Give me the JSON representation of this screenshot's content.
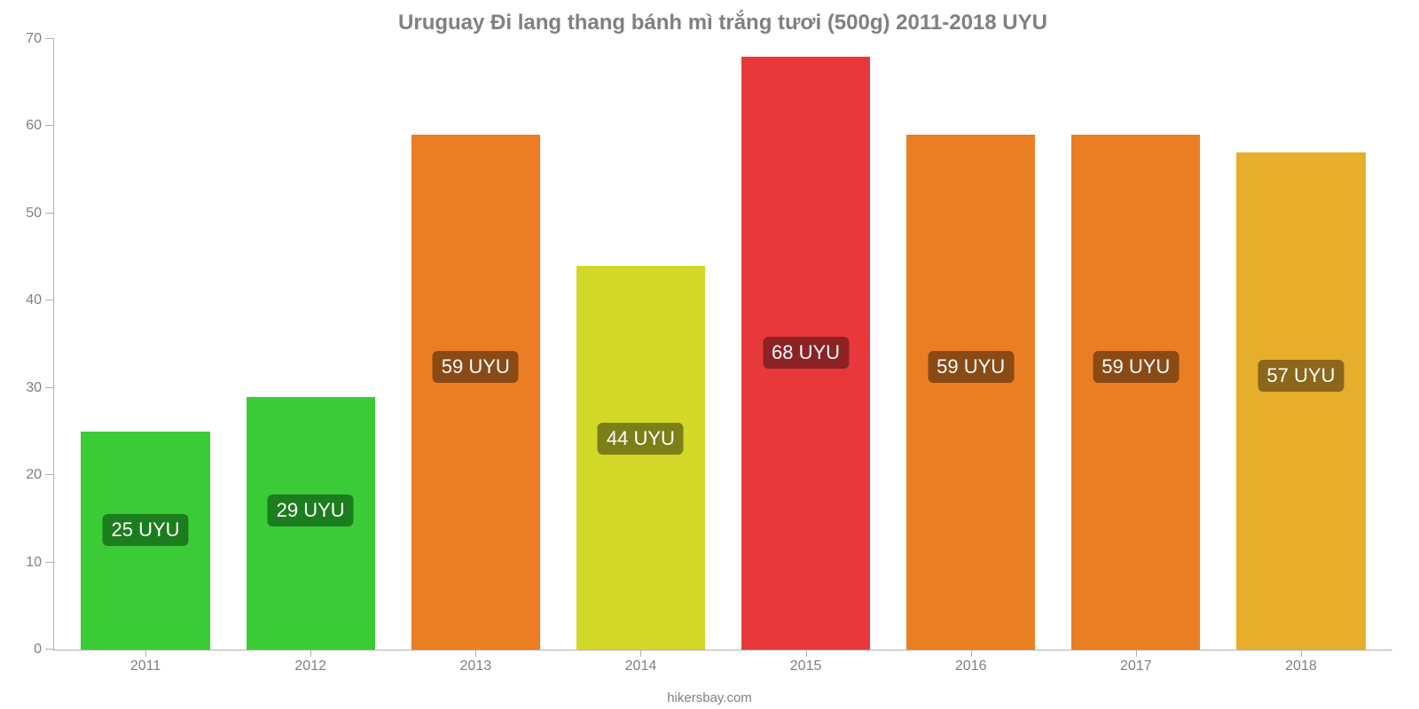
{
  "chart": {
    "type": "bar",
    "title": "Uruguay Đi lang thang bánh mì trắng tươi (500g) 2011-2018 UYU",
    "title_fontsize": 24,
    "title_color": "#808080",
    "background_color": "#ffffff",
    "axis_color": "#b0b0b0",
    "tick_label_color": "#808080",
    "tick_label_fontsize": 16,
    "ylim": [
      0,
      70
    ],
    "ytick_step": 10,
    "yticks": [
      0,
      10,
      20,
      30,
      40,
      50,
      60,
      70
    ],
    "categories": [
      "2011",
      "2012",
      "2013",
      "2014",
      "2015",
      "2016",
      "2017",
      "2018"
    ],
    "values": [
      25,
      29,
      59,
      44,
      68,
      59,
      59,
      57
    ],
    "value_labels": [
      "25 UYU",
      "29 UYU",
      "59 UYU",
      "44 UYU",
      "68 UYU",
      "59 UYU",
      "59 UYU",
      "57 UYU"
    ],
    "bar_colors": [
      "#3bcb37",
      "#3bcb37",
      "#eb7e23",
      "#d2d827",
      "#e8383b",
      "#eb7e23",
      "#eb7e23",
      "#e7ae2b"
    ],
    "badge_colors": [
      "#1c7d1e",
      "#1c7d1e",
      "#8a4a16",
      "#7c7f18",
      "#8c2224",
      "#8a4a16",
      "#8a4a16",
      "#89671b"
    ],
    "badge_text_color": "#ffffff",
    "badge_fontsize": 22,
    "bar_width": 0.78,
    "footer": "hikersbay.com",
    "footer_color": "#808080",
    "footer_fontsize": 15
  }
}
